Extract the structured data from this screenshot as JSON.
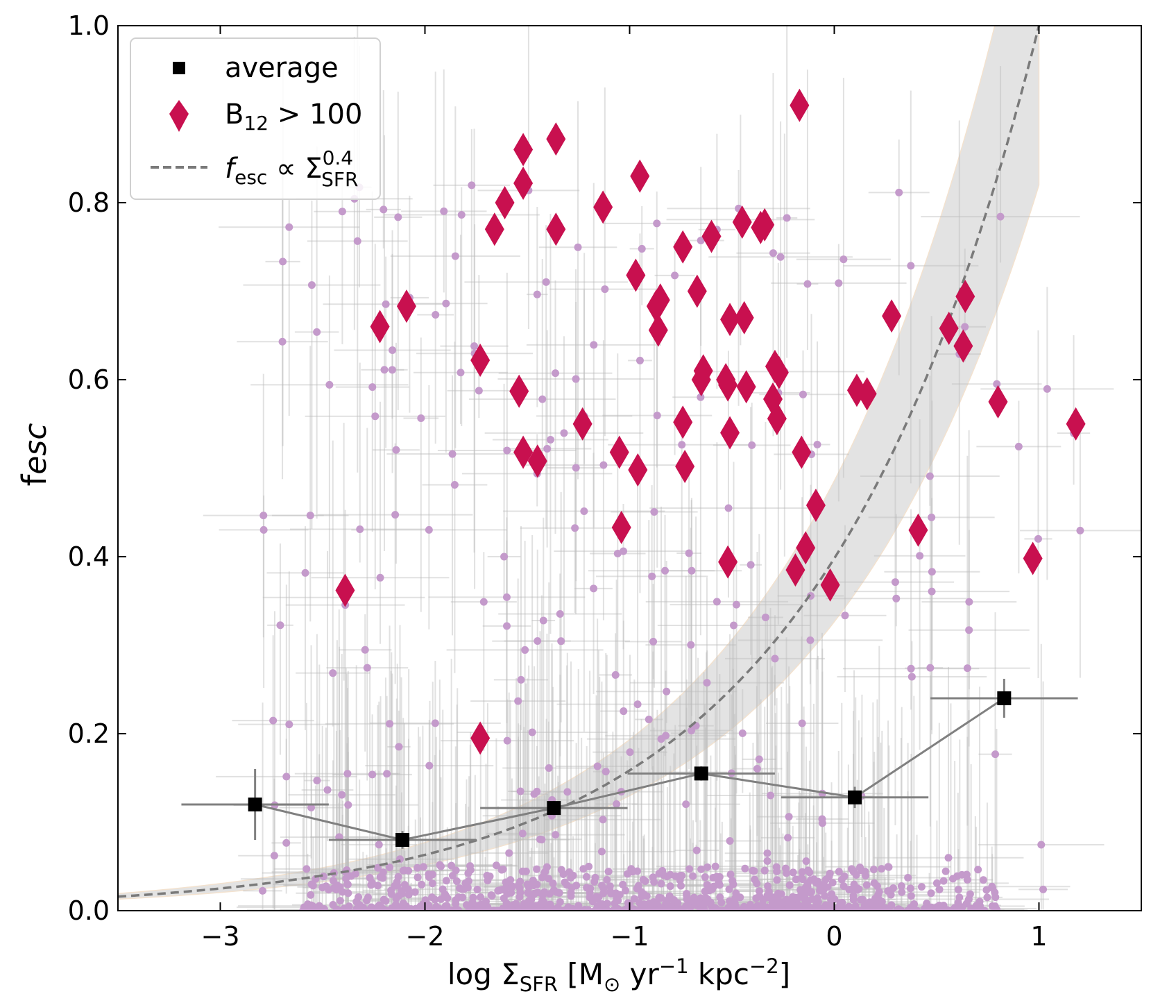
{
  "chart_data": {
    "type": "scatter",
    "title": "",
    "xlabel": {
      "main": "log Σ",
      "sub": "SFR",
      "unit_open": " [M",
      "sun": "⊙",
      "yr": " yr",
      "sup1": "−1",
      "kpc": " kpc",
      "sup2": "−2",
      "close": "]"
    },
    "ylabel": {
      "main": "f",
      "sub": "esc"
    },
    "xlim": [
      -3.5,
      1.5
    ],
    "ylim": [
      0.0,
      1.0
    ],
    "xticks": [
      -3,
      -2,
      -1,
      0,
      1
    ],
    "xtick_labels": [
      "−3",
      "−2",
      "−1",
      "0",
      "1"
    ],
    "yticks": [
      0.0,
      0.2,
      0.4,
      0.6,
      0.8,
      1.0
    ],
    "ytick_labels": [
      "0.0",
      "0.2",
      "0.4",
      "0.6",
      "0.8",
      "1.0"
    ],
    "legend": {
      "placement": "upper-left",
      "entries": [
        {
          "key": "average",
          "label": "average"
        },
        {
          "key": "b12",
          "label_main": "B",
          "label_sub": "12",
          "label_rest": " > 100"
        },
        {
          "key": "fit",
          "label_main": "f",
          "label_sub": "esc",
          "label_mid": " ∝ Σ",
          "label_sup": "0.4",
          "label_sub2": "SFR"
        }
      ]
    },
    "colors": {
      "average": "#000000",
      "average_errors": "#808080",
      "b12": "#c8104f",
      "scatter": "#c49acb",
      "scatter_errors": "#bdbdbd",
      "fit": "#7a7a7a",
      "band": "#e3e3e3",
      "band_edge": "#f3e2cf"
    },
    "fit": {
      "exponent": 0.4,
      "x_end": 1.0,
      "y_end": 1.0,
      "band_low_factor": 0.82,
      "band_high_factor": 1.22
    },
    "average": [
      {
        "x": -2.83,
        "y": 0.12,
        "xerr": 0.36,
        "yerr": 0.04
      },
      {
        "x": -2.11,
        "y": 0.08,
        "xerr": 0.36,
        "yerr": 0.01
      },
      {
        "x": -1.37,
        "y": 0.116,
        "xerr": 0.36,
        "yerr": 0.008
      },
      {
        "x": -0.65,
        "y": 0.155,
        "xerr": 0.36,
        "yerr": 0.008
      },
      {
        "x": 0.1,
        "y": 0.128,
        "xerr": 0.36,
        "yerr": 0.012
      },
      {
        "x": 0.83,
        "y": 0.24,
        "xerr": 0.36,
        "yerr": 0.022
      }
    ],
    "b12_points": [
      {
        "x": -2.39,
        "y": 0.362
      },
      {
        "x": -2.22,
        "y": 0.66
      },
      {
        "x": -2.09,
        "y": 0.683
      },
      {
        "x": -1.73,
        "y": 0.622
      },
      {
        "x": -1.73,
        "y": 0.195
      },
      {
        "x": -1.66,
        "y": 0.77
      },
      {
        "x": -1.61,
        "y": 0.8
      },
      {
        "x": -1.54,
        "y": 0.587
      },
      {
        "x": -1.52,
        "y": 0.86
      },
      {
        "x": -1.52,
        "y": 0.822
      },
      {
        "x": -1.52,
        "y": 0.518
      },
      {
        "x": -1.45,
        "y": 0.508
      },
      {
        "x": -1.36,
        "y": 0.872
      },
      {
        "x": -1.36,
        "y": 0.77
      },
      {
        "x": -1.23,
        "y": 0.55
      },
      {
        "x": -1.13,
        "y": 0.795
      },
      {
        "x": -1.05,
        "y": 0.518
      },
      {
        "x": -1.04,
        "y": 0.433
      },
      {
        "x": -0.95,
        "y": 0.83
      },
      {
        "x": -0.96,
        "y": 0.498
      },
      {
        "x": -0.97,
        "y": 0.718
      },
      {
        "x": -0.87,
        "y": 0.683
      },
      {
        "x": -0.85,
        "y": 0.69
      },
      {
        "x": -0.86,
        "y": 0.656
      },
      {
        "x": -0.74,
        "y": 0.75
      },
      {
        "x": -0.74,
        "y": 0.552
      },
      {
        "x": -0.73,
        "y": 0.502
      },
      {
        "x": -0.67,
        "y": 0.7
      },
      {
        "x": -0.64,
        "y": 0.61
      },
      {
        "x": -0.65,
        "y": 0.6
      },
      {
        "x": -0.6,
        "y": 0.762
      },
      {
        "x": -0.53,
        "y": 0.6
      },
      {
        "x": -0.52,
        "y": 0.594
      },
      {
        "x": -0.51,
        "y": 0.668
      },
      {
        "x": -0.51,
        "y": 0.54
      },
      {
        "x": -0.52,
        "y": 0.394
      },
      {
        "x": -0.45,
        "y": 0.778
      },
      {
        "x": -0.44,
        "y": 0.67
      },
      {
        "x": -0.43,
        "y": 0.592
      },
      {
        "x": -0.36,
        "y": 0.772
      },
      {
        "x": -0.34,
        "y": 0.775
      },
      {
        "x": -0.29,
        "y": 0.615
      },
      {
        "x": -0.27,
        "y": 0.608
      },
      {
        "x": -0.3,
        "y": 0.578
      },
      {
        "x": -0.28,
        "y": 0.556
      },
      {
        "x": -0.17,
        "y": 0.91
      },
      {
        "x": -0.16,
        "y": 0.518
      },
      {
        "x": -0.09,
        "y": 0.458
      },
      {
        "x": -0.14,
        "y": 0.41
      },
      {
        "x": -0.19,
        "y": 0.385
      },
      {
        "x": -0.02,
        "y": 0.368
      },
      {
        "x": 0.11,
        "y": 0.588
      },
      {
        "x": 0.16,
        "y": 0.584
      },
      {
        "x": 0.28,
        "y": 0.672
      },
      {
        "x": 0.41,
        "y": 0.43
      },
      {
        "x": 0.56,
        "y": 0.658
      },
      {
        "x": 0.64,
        "y": 0.694
      },
      {
        "x": 0.63,
        "y": 0.638
      },
      {
        "x": 0.8,
        "y": 0.575
      },
      {
        "x": 0.97,
        "y": 0.398
      },
      {
        "x": 1.18,
        "y": 0.55
      }
    ],
    "scatter_summary": "individual galaxies with error bars (~1000 points, mostly f_esc < 0.05)"
  }
}
